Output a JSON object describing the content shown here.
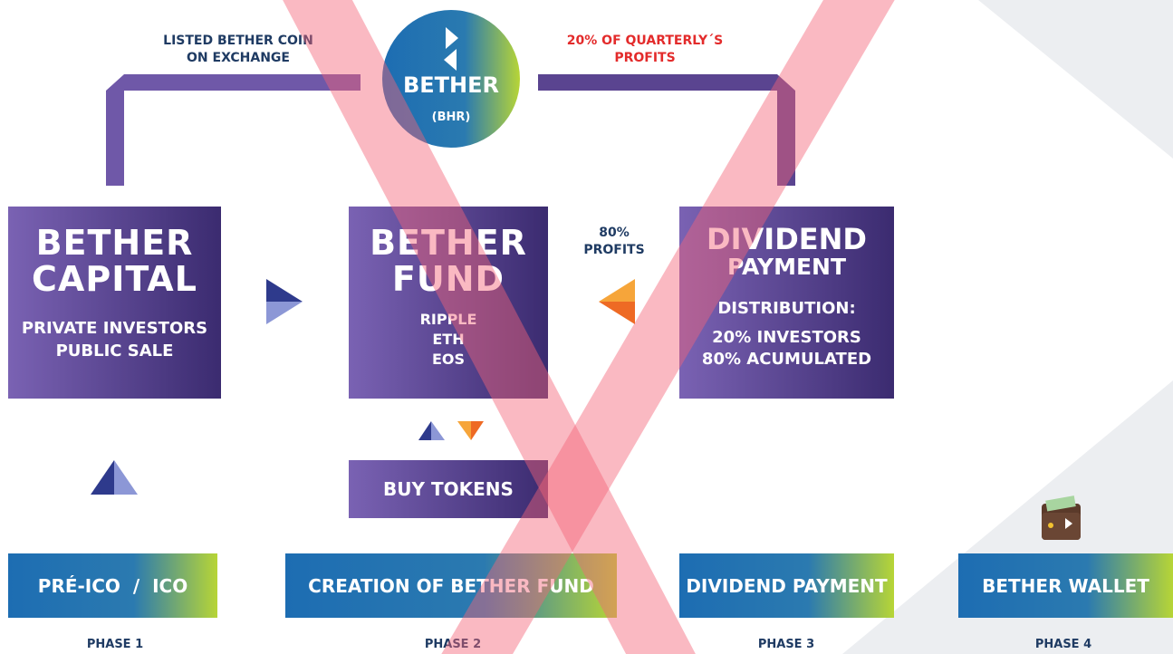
{
  "top_left_label": [
    "LISTED BETHER COIN",
    "ON EXCHANGE"
  ],
  "top_right_label": [
    "20% OF QUARTERLY´S",
    "PROFITS"
  ],
  "coin": {
    "name": "BETHER",
    "ticker": "(BHR)"
  },
  "boxes": [
    {
      "title": [
        "BETHER",
        "CAPITAL"
      ],
      "body": [
        "PRIVATE INVESTORS",
        "PUBLIC SALE"
      ]
    },
    {
      "title": [
        "BETHER",
        "FUND"
      ],
      "body": [
        "RIPPLE",
        "ETH",
        "EOS"
      ]
    },
    {
      "title": [
        "DIVIDEND",
        "PAYMENT"
      ],
      "subtitle": "DISTRIBUTION:",
      "body": [
        "20% INVESTORS",
        "80% ACUMULATED"
      ]
    }
  ],
  "profits_label": [
    "80%",
    "PROFITS"
  ],
  "buy_tokens": "BUY TOKENS",
  "phases": [
    {
      "label": "PRÉ-ICO  /  ICO",
      "caption": "PHASE 1"
    },
    {
      "label": "CREATION OF BETHER FUND",
      "caption": "PHASE 2"
    },
    {
      "label": "DIVIDEND PAYMENT",
      "caption": "PHASE 3"
    },
    {
      "label": "BETHER WALLET",
      "caption": "PHASE 4"
    }
  ]
}
